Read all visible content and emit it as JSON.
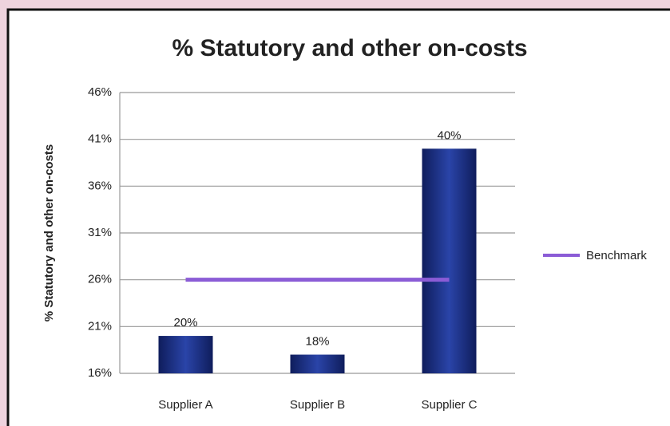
{
  "chart_data": {
    "type": "bar",
    "title": "% Statutory and other on-costs",
    "y_label": "% Statutory and other on-costs",
    "categories": [
      "Supplier A",
      "Supplier B",
      "Supplier C"
    ],
    "series": [
      {
        "type": "bar",
        "color": "#1c2f82",
        "values": [
          20,
          18,
          40
        ],
        "value_labels": [
          "20%",
          "18%",
          "40%"
        ]
      },
      {
        "type": "line",
        "name": "Benchmark",
        "color": "#8b5cd6",
        "values": [
          26,
          26,
          26
        ]
      }
    ],
    "ylim": [
      16,
      46
    ],
    "yticks": [
      {
        "value": 16,
        "label": "16%"
      },
      {
        "value": 21,
        "label": "21%"
      },
      {
        "value": 26,
        "label": "26%"
      },
      {
        "value": 31,
        "label": "31%"
      },
      {
        "value": 36,
        "label": "36%"
      },
      {
        "value": 41,
        "label": "41%"
      },
      {
        "value": 46,
        "label": "46%"
      }
    ],
    "grid": true,
    "legend": "right"
  }
}
